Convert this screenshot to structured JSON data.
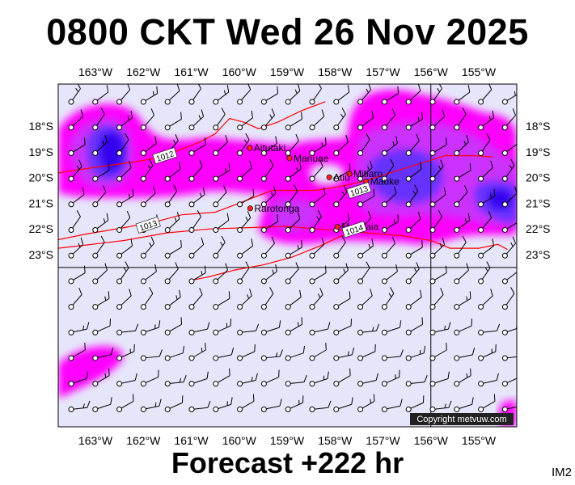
{
  "title": "0800 CKT Wed 26 Nov 2025",
  "subtitle": "Forecast +222 hr",
  "image_code": "IM2",
  "copyright": "Copyright metvuw.com",
  "colors": {
    "background": "#e6e6fa",
    "rain_light": "#ff00ff",
    "rain_medium": "#cc33ff",
    "rain_heavy": "#6633ff",
    "rain_extreme": "#3300ee",
    "isobar": "#ff0000",
    "town": "#ff2222"
  },
  "lon_labels": [
    "163°W",
    "162°W",
    "161°W",
    "160°W",
    "159°W",
    "158°W",
    "157°W",
    "156°W",
    "155°W"
  ],
  "lat_labels": [
    "18°S",
    "19°S",
    "20°S",
    "21°S",
    "22°S",
    "23°S"
  ],
  "towns": [
    {
      "name": "Aitutaki",
      "lon": -159.78,
      "lat": -18.85
    },
    {
      "name": "Manuae",
      "lon": -158.95,
      "lat": -19.25
    },
    {
      "name": "Atiu",
      "lon": -158.12,
      "lat": -19.99
    },
    {
      "name": "Mitiaro",
      "lon": -157.7,
      "lat": -19.86
    },
    {
      "name": "Mauke",
      "lon": -157.35,
      "lat": -20.15
    },
    {
      "name": "Rarotonga",
      "lon": -159.77,
      "lat": -21.2
    },
    {
      "name": "Mangaia",
      "lon": -157.95,
      "lat": -21.92
    }
  ],
  "isobars": [
    {
      "label": "1012",
      "label_lon": -161.55,
      "label_lat": -19.15,
      "points": [
        [
          -164,
          -19.9
        ],
        [
          -163.7,
          -19.8
        ],
        [
          -163,
          -19.6
        ],
        [
          -162.2,
          -19.4
        ],
        [
          -161.6,
          -19.2
        ],
        [
          -161.2,
          -18.9
        ],
        [
          -160.8,
          -18.6
        ],
        [
          -160.5,
          -18.3
        ],
        [
          -160.2,
          -17.7
        ],
        [
          -159.9,
          -17.85
        ],
        [
          -159.6,
          -18.1
        ],
        [
          -159.2,
          -17.85
        ],
        [
          -158.7,
          -17.4
        ],
        [
          -158.2,
          -17.05
        ]
      ]
    },
    {
      "label": "1013",
      "label_lon": -157.5,
      "label_lat": -20.5,
      "points": [
        [
          -158.4,
          -20.5
        ],
        [
          -157.9,
          -20.35
        ],
        [
          -157.4,
          -20.15
        ],
        [
          -156.9,
          -19.85
        ],
        [
          -156.3,
          -19.5
        ],
        [
          -155.7,
          -19.15
        ],
        [
          -155.1,
          -19.15
        ],
        [
          -154.7,
          -19.2
        ]
      ]
    },
    {
      "label": "1013",
      "label_lon": -161.9,
      "label_lat": -21.85,
      "points": [
        [
          -164,
          -22.5
        ],
        [
          -163.2,
          -22.2
        ],
        [
          -162.4,
          -21.95
        ],
        [
          -161.7,
          -21.7
        ],
        [
          -161.2,
          -21.45
        ],
        [
          -160.5,
          -21.35
        ],
        [
          -160.0,
          -21.0
        ],
        [
          -159.6,
          -20.7
        ],
        [
          -159.3,
          -20.5
        ],
        [
          -159,
          -20.5
        ],
        [
          -158.6,
          -20.5
        ],
        [
          -158.4,
          -20.5
        ]
      ]
    },
    {
      "label": "1014",
      "label_lon": -157.6,
      "label_lat": -22.02,
      "points": [
        [
          -164,
          -22.8
        ],
        [
          -163.3,
          -22.65
        ],
        [
          -162.4,
          -22.45
        ],
        [
          -161.5,
          -22.15
        ],
        [
          -160.6,
          -22.0
        ],
        [
          -159.8,
          -21.95
        ],
        [
          -159.0,
          -21.9
        ],
        [
          -158.4,
          -22.0
        ],
        [
          -157.8,
          -22.08
        ],
        [
          -157.2,
          -22.18
        ],
        [
          -156.6,
          -22.26
        ],
        [
          -156.0,
          -22.45
        ],
        [
          -155.6,
          -22.75
        ],
        [
          -155.0,
          -22.75
        ],
        [
          -154.6,
          -22.6
        ],
        [
          -154.4,
          -22.8
        ]
      ]
    },
    {
      "label": "",
      "label_lon": 0,
      "label_lat": 0,
      "points": [
        [
          -161,
          -24
        ],
        [
          -160.6,
          -23.85
        ],
        [
          -160.1,
          -23.6
        ],
        [
          -159.5,
          -23.4
        ],
        [
          -158.9,
          -23.1
        ],
        [
          -158.3,
          -22.65
        ],
        [
          -157.9,
          -22.3
        ],
        [
          -157.6,
          -22.1
        ]
      ]
    }
  ]
}
